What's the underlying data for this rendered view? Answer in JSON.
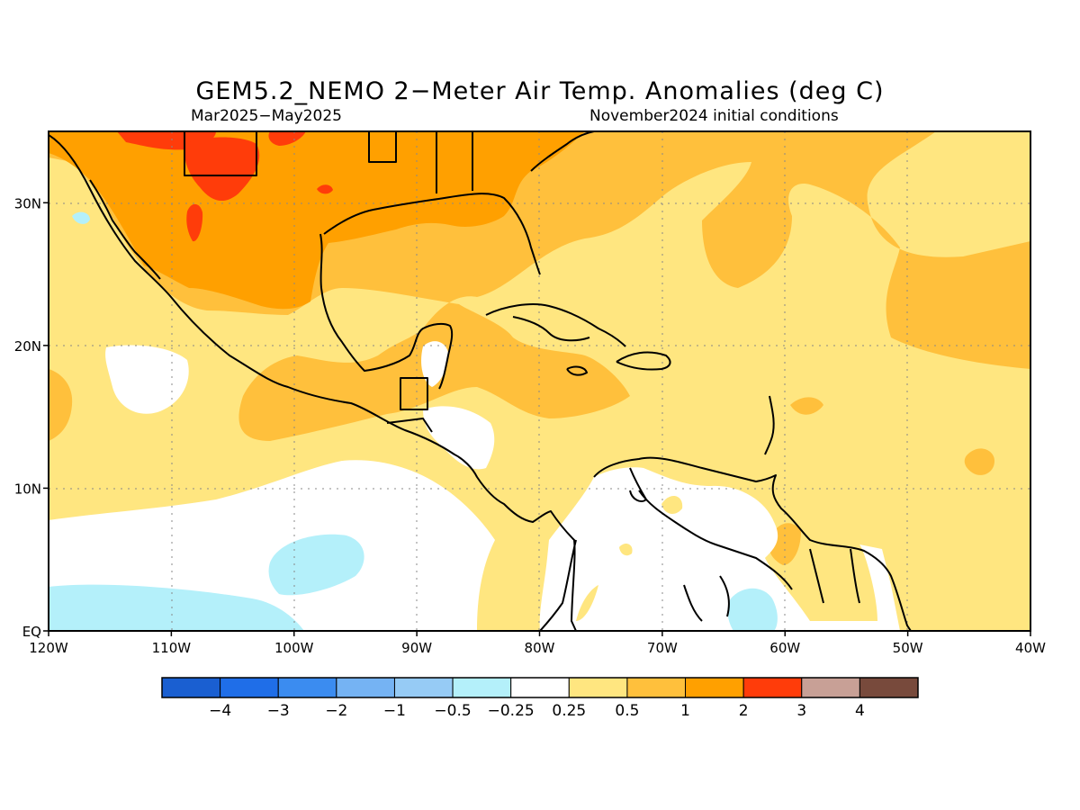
{
  "header": {
    "title": "GEM5.2_NEMO 2−Meter Air Temp. Anomalies (deg C)",
    "season": "Mar2025−May2025",
    "init": "November2024 initial conditions"
  },
  "map": {
    "lon_range": [
      -120,
      -40
    ],
    "lat_range": [
      0,
      35
    ],
    "background_category": "0.25 to 0.5",
    "x_ticks": [
      {
        "lon": -120,
        "label": "120W"
      },
      {
        "lon": -110,
        "label": "110W"
      },
      {
        "lon": -100,
        "label": "100W"
      },
      {
        "lon": -90,
        "label": "90W"
      },
      {
        "lon": -80,
        "label": "80W"
      },
      {
        "lon": -70,
        "label": "70W"
      },
      {
        "lon": -60,
        "label": "60W"
      },
      {
        "lon": -50,
        "label": "50W"
      },
      {
        "lon": -40,
        "label": "40W"
      }
    ],
    "y_ticks": [
      {
        "lat": 0,
        "label": "EQ"
      },
      {
        "lat": 10,
        "label": "10N"
      },
      {
        "lat": 20,
        "label": "20N"
      },
      {
        "lat": 30,
        "label": "30N"
      }
    ],
    "grid": "dotted"
  },
  "colorbar": {
    "colors": [
      "#1a5fd1",
      "#1f6ee8",
      "#3b8cf0",
      "#75b3f3",
      "#96cbf5",
      "#b4f0fa",
      "#ffffff",
      "#ffe680",
      "#ffc03c",
      "#ffa000",
      "#ff3c0a",
      "#c8a096",
      "#784a3c"
    ],
    "labels": [
      "−4",
      "−3",
      "−2",
      "−1",
      "−0.5",
      "−0.25",
      "0.25",
      "0.5",
      "1",
      "2",
      "3",
      "4"
    ]
  }
}
